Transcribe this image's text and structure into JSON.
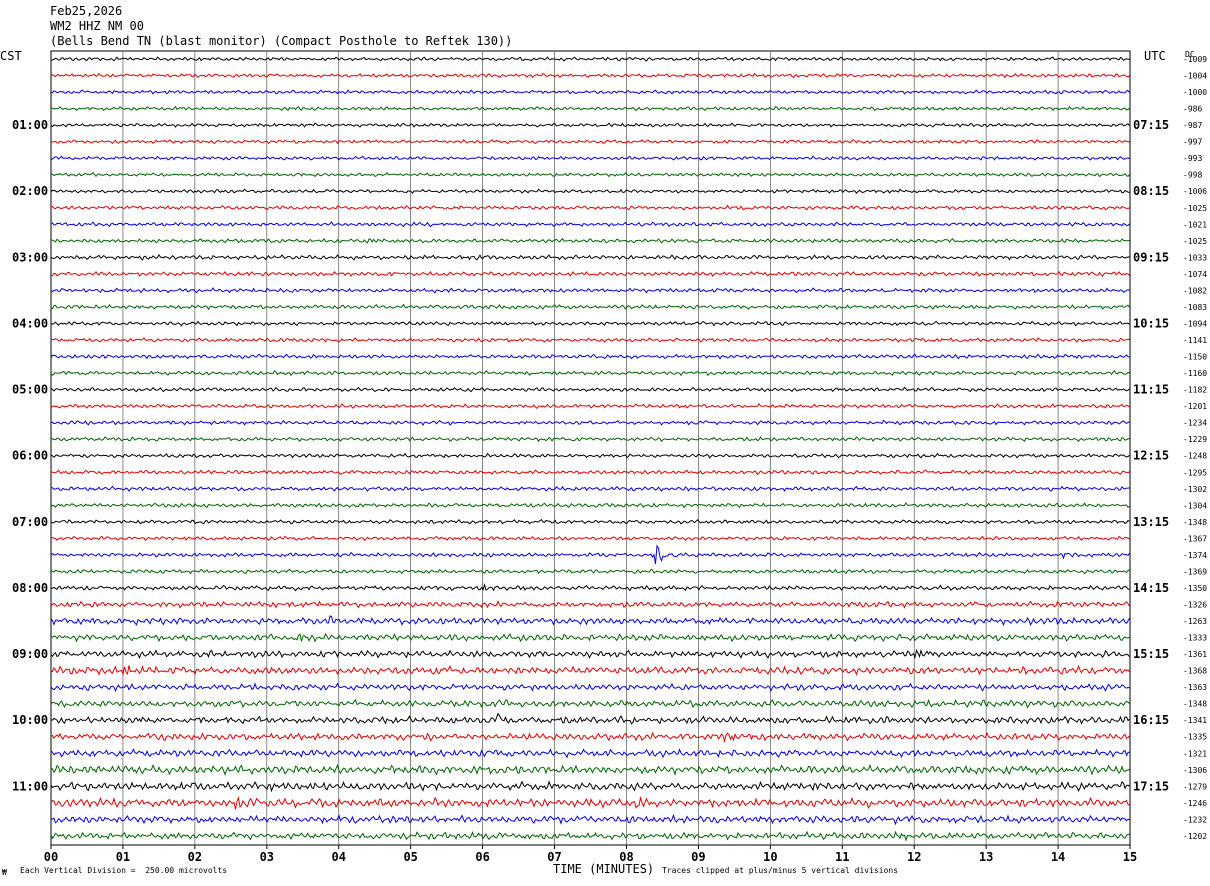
{
  "header": {
    "date": "Feb25,2026",
    "station": "WM2 HHZ NM 00",
    "description": "(Bells Bend TN (blast monitor) (Compact Posthole to Reftek 130))"
  },
  "left_axis_label": "CST",
  "right_axis_label": "UTC",
  "dc_label": "DC",
  "footer": {
    "scale_note": "Each Vertical Division =  250.00 microvolts",
    "xaxis_title": "TIME (MINUTES)",
    "clip_note": "Traces clipped at plus/minus 5 vertical divisions",
    "corner_mark": "₩"
  },
  "colors": {
    "cycle": [
      "#000000",
      "#e00000",
      "#0000e0",
      "#006400"
    ],
    "grid": "#000000"
  },
  "chart_data": {
    "type": "line",
    "title": "",
    "xlabel": "TIME (MINUTES)",
    "xlim": [
      0,
      15
    ],
    "x_ticks": [
      "00",
      "01",
      "02",
      "03",
      "04",
      "05",
      "06",
      "07",
      "08",
      "09",
      "10",
      "11",
      "12",
      "13",
      "14",
      "15"
    ],
    "trace_count": 48,
    "traces_per_hour": 4,
    "left_hour_labels": [
      "01:00",
      "02:00",
      "03:00",
      "04:00",
      "05:00",
      "06:00",
      "07:00",
      "08:00",
      "09:00",
      "10:00",
      "11:00"
    ],
    "right_hour_labels": [
      "07:15",
      "08:15",
      "09:15",
      "10:15",
      "11:15",
      "12:15",
      "13:15",
      "14:15",
      "15:15",
      "16:15",
      "17:15"
    ],
    "dc_offsets": [
      "-1009",
      "-1004",
      "-1000",
      "-986",
      "-987",
      "-997",
      "-993",
      "-998",
      "-1006",
      "-1025",
      "-1021",
      "-1025",
      "-1033",
      "-1074",
      "-1082",
      "-1083",
      "-1094",
      "-1141",
      "-1150",
      "-1160",
      "-1182",
      "-1201",
      "-1234",
      "-1229",
      "-1248",
      "-1295",
      "-1302",
      "-1304",
      "-1348",
      "-1367",
      "-1374",
      "-1369",
      "-1350",
      "-1326",
      "-1263",
      "-1333",
      "-1361",
      "-1368",
      "-1363",
      "-1348",
      "-1341",
      "-1335",
      "-1321",
      "-1306",
      "-1279",
      "-1246",
      "-1232",
      "-1202"
    ],
    "noise_level": [
      1.0,
      1.0,
      1.0,
      1.0,
      1.0,
      1.0,
      1.0,
      1.0,
      1.0,
      1.1,
      1.1,
      1.1,
      1.2,
      1.2,
      1.2,
      1.2,
      1.1,
      1.1,
      1.1,
      1.1,
      1.1,
      1.1,
      1.1,
      1.1,
      1.1,
      1.1,
      1.2,
      1.2,
      1.1,
      1.1,
      1.1,
      1.1,
      1.3,
      1.6,
      1.9,
      1.9,
      1.9,
      2.2,
      1.8,
      1.9,
      2.0,
      2.0,
      2.0,
      2.4,
      2.3,
      2.4,
      2.1,
      1.9
    ],
    "events": [
      {
        "trace": 30,
        "minute": 8.4,
        "amplitude": 3.6
      },
      {
        "trace": 30,
        "minute": 14.0,
        "amplitude": 1.2
      },
      {
        "trace": 32,
        "minute": 6.55,
        "amplitude": 1.1
      },
      {
        "trace": 32,
        "minute": 6.0,
        "amplitude": 0.8
      },
      {
        "trace": 34,
        "minute": 3.8,
        "amplitude": 1.0
      },
      {
        "trace": 34,
        "minute": 7.5,
        "amplitude": 0.9
      },
      {
        "trace": 35,
        "minute": 3.4,
        "amplitude": 1.1
      },
      {
        "trace": 36,
        "minute": 12.0,
        "amplitude": 1.1
      },
      {
        "trace": 37,
        "minute": 1.0,
        "amplitude": 1.4
      },
      {
        "trace": 39,
        "minute": 6.2,
        "amplitude": 1.0
      },
      {
        "trace": 40,
        "minute": 6.2,
        "amplitude": 1.2
      },
      {
        "trace": 41,
        "minute": 9.35,
        "amplitude": 1.3
      },
      {
        "trace": 44,
        "minute": 1.8,
        "amplitude": 1.1
      },
      {
        "trace": 45,
        "minute": 2.55,
        "amplitude": 1.3
      },
      {
        "trace": 45,
        "minute": 8.1,
        "amplitude": 1.2
      },
      {
        "trace": 47,
        "minute": 11.7,
        "amplitude": 1.0
      },
      {
        "trace": 12,
        "minute": 5.75,
        "amplitude": 0.8
      },
      {
        "trace": 12,
        "minute": 12.9,
        "amplitude": 0.7
      },
      {
        "trace": 11,
        "minute": 4.4,
        "amplitude": 0.6
      }
    ]
  }
}
